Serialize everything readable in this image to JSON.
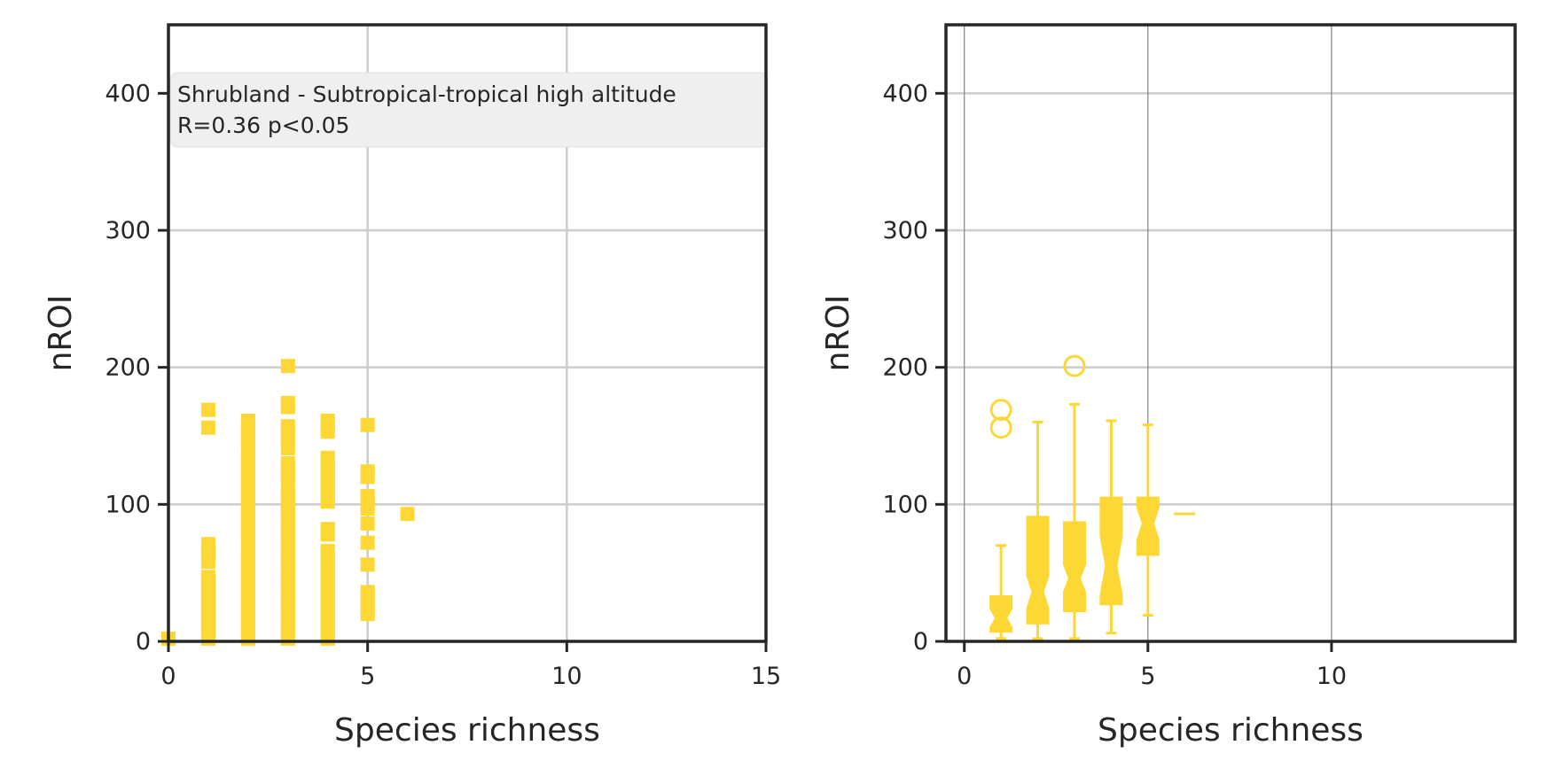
{
  "colors": {
    "marker": "#fdd835",
    "axis": "#262626",
    "grid": "#cccccc",
    "grid_dark": "#808080",
    "annotation_bg": "#efefef"
  },
  "chart_data": [
    {
      "type": "scatter",
      "marker": "square",
      "xlabel": "Species richness",
      "ylabel": "nROI",
      "xlim": [
        0,
        15
      ],
      "ylim": [
        0,
        450
      ],
      "xticks": [
        "0",
        "5",
        "10",
        "15"
      ],
      "yticks": [
        "0",
        "100",
        "200",
        "300",
        "400"
      ],
      "grid": true,
      "annotation": {
        "line1": "Shrubland - Subtropical-tropical high altitude",
        "line2": "R=0.36  p<0.05",
        "placement": "top-left"
      },
      "points": [
        [
          0,
          2
        ],
        [
          1,
          2
        ],
        [
          1,
          5
        ],
        [
          1,
          8
        ],
        [
          1,
          11
        ],
        [
          1,
          14
        ],
        [
          1,
          17
        ],
        [
          1,
          20
        ],
        [
          1,
          23
        ],
        [
          1,
          26
        ],
        [
          1,
          29
        ],
        [
          1,
          32
        ],
        [
          1,
          35
        ],
        [
          1,
          38
        ],
        [
          1,
          41
        ],
        [
          1,
          44
        ],
        [
          1,
          47
        ],
        [
          1,
          58
        ],
        [
          1,
          63
        ],
        [
          1,
          67
        ],
        [
          1,
          71
        ],
        [
          1,
          156
        ],
        [
          1,
          169
        ],
        [
          2,
          2
        ],
        [
          2,
          6
        ],
        [
          2,
          10
        ],
        [
          2,
          14
        ],
        [
          2,
          18
        ],
        [
          2,
          22
        ],
        [
          2,
          26
        ],
        [
          2,
          30
        ],
        [
          2,
          34
        ],
        [
          2,
          38
        ],
        [
          2,
          42
        ],
        [
          2,
          46
        ],
        [
          2,
          50
        ],
        [
          2,
          54
        ],
        [
          2,
          58
        ],
        [
          2,
          62
        ],
        [
          2,
          66
        ],
        [
          2,
          72
        ],
        [
          2,
          76
        ],
        [
          2,
          80
        ],
        [
          2,
          84
        ],
        [
          2,
          88
        ],
        [
          2,
          92
        ],
        [
          2,
          96
        ],
        [
          2,
          100
        ],
        [
          2,
          104
        ],
        [
          2,
          108
        ],
        [
          2,
          112
        ],
        [
          2,
          116
        ],
        [
          2,
          120
        ],
        [
          2,
          124
        ],
        [
          2,
          128
        ],
        [
          2,
          132
        ],
        [
          2,
          136
        ],
        [
          2,
          141
        ],
        [
          2,
          145
        ],
        [
          2,
          149
        ],
        [
          2,
          153
        ],
        [
          2,
          157
        ],
        [
          2,
          161
        ],
        [
          3,
          2
        ],
        [
          3,
          6
        ],
        [
          3,
          10
        ],
        [
          3,
          14
        ],
        [
          3,
          18
        ],
        [
          3,
          22
        ],
        [
          3,
          26
        ],
        [
          3,
          30
        ],
        [
          3,
          34
        ],
        [
          3,
          38
        ],
        [
          3,
          42
        ],
        [
          3,
          46
        ],
        [
          3,
          50
        ],
        [
          3,
          54
        ],
        [
          3,
          58
        ],
        [
          3,
          62
        ],
        [
          3,
          66
        ],
        [
          3,
          70
        ],
        [
          3,
          74
        ],
        [
          3,
          78
        ],
        [
          3,
          82
        ],
        [
          3,
          86
        ],
        [
          3,
          90
        ],
        [
          3,
          94
        ],
        [
          3,
          98
        ],
        [
          3,
          102
        ],
        [
          3,
          106
        ],
        [
          3,
          110
        ],
        [
          3,
          118
        ],
        [
          3,
          122
        ],
        [
          3,
          126
        ],
        [
          3,
          130
        ],
        [
          3,
          141
        ],
        [
          3,
          145
        ],
        [
          3,
          153
        ],
        [
          3,
          157
        ],
        [
          3,
          171
        ],
        [
          3,
          174
        ],
        [
          3,
          201
        ],
        [
          4,
          2
        ],
        [
          4,
          6
        ],
        [
          4,
          10
        ],
        [
          4,
          14
        ],
        [
          4,
          18
        ],
        [
          4,
          22
        ],
        [
          4,
          26
        ],
        [
          4,
          30
        ],
        [
          4,
          34
        ],
        [
          4,
          38
        ],
        [
          4,
          42
        ],
        [
          4,
          46
        ],
        [
          4,
          50
        ],
        [
          4,
          54
        ],
        [
          4,
          58
        ],
        [
          4,
          62
        ],
        [
          4,
          66
        ],
        [
          4,
          78
        ],
        [
          4,
          82
        ],
        [
          4,
          102
        ],
        [
          4,
          106
        ],
        [
          4,
          110
        ],
        [
          4,
          114
        ],
        [
          4,
          118
        ],
        [
          4,
          122
        ],
        [
          4,
          126
        ],
        [
          4,
          130
        ],
        [
          4,
          134
        ],
        [
          4,
          153
        ],
        [
          4,
          157
        ],
        [
          4,
          161
        ],
        [
          5,
          20
        ],
        [
          5,
          24
        ],
        [
          5,
          32
        ],
        [
          5,
          36
        ],
        [
          5,
          56
        ],
        [
          5,
          72
        ],
        [
          5,
          86
        ],
        [
          5,
          97
        ],
        [
          5,
          102
        ],
        [
          5,
          106
        ],
        [
          5,
          120
        ],
        [
          5,
          124
        ],
        [
          5,
          158
        ],
        [
          6,
          93
        ]
      ]
    },
    {
      "type": "box",
      "notched": true,
      "xlabel": "Species richness",
      "ylabel": "nROI",
      "xlim": [
        -0.5,
        15
      ],
      "ylim": [
        0,
        450
      ],
      "xticks": [
        "0",
        "5",
        "10"
      ],
      "yticks": [
        "0",
        "100",
        "200",
        "300",
        "400"
      ],
      "grid": true,
      "boxes": [
        {
          "x": 0,
          "min": 0,
          "q1": 0,
          "median": 0,
          "q3": 0,
          "max": 0,
          "notch_low": 0,
          "notch_high": 0,
          "outliers": []
        },
        {
          "x": 1,
          "min": 2,
          "q1": 7,
          "median": 17,
          "q3": 33,
          "max": 70,
          "notch_low": 10,
          "notch_high": 24,
          "outliers": [
            156,
            169
          ]
        },
        {
          "x": 2,
          "min": 2,
          "q1": 13,
          "median": 36,
          "q3": 91,
          "max": 160,
          "notch_low": 24,
          "notch_high": 48,
          "outliers": []
        },
        {
          "x": 3,
          "min": 2,
          "q1": 22,
          "median": 46,
          "q3": 87,
          "max": 173,
          "notch_low": 36,
          "notch_high": 56,
          "outliers": [
            201
          ]
        },
        {
          "x": 4,
          "min": 6,
          "q1": 27,
          "median": 55,
          "q3": 105,
          "max": 161,
          "notch_low": 34,
          "notch_high": 77,
          "outliers": []
        },
        {
          "x": 5,
          "min": 19,
          "q1": 63,
          "median": 86,
          "q3": 105,
          "max": 158,
          "notch_low": 74,
          "notch_high": 98,
          "outliers": []
        },
        {
          "x": 6,
          "min": 93,
          "q1": 93,
          "median": 93,
          "q3": 93,
          "max": 93,
          "notch_low": 93,
          "notch_high": 93,
          "outliers": []
        }
      ]
    }
  ]
}
